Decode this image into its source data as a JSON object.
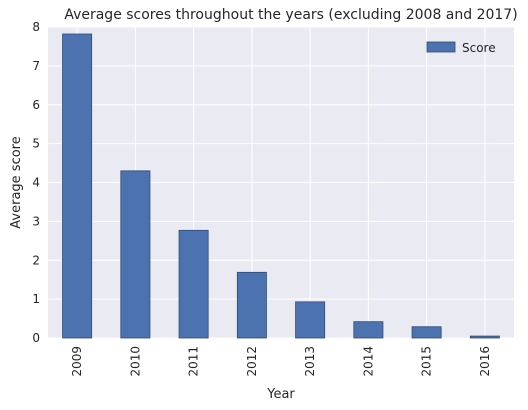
{
  "chart_data": {
    "type": "bar",
    "title": "Average scores throughout the years (excluding 2008 and 2017)",
    "xlabel": "Year",
    "ylabel": "Average score",
    "categories": [
      "2009",
      "2010",
      "2011",
      "2012",
      "2013",
      "2014",
      "2015",
      "2016"
    ],
    "series": [
      {
        "name": "Score",
        "values": [
          7.82,
          4.3,
          2.77,
          1.69,
          0.93,
          0.42,
          0.29,
          0.05
        ]
      }
    ],
    "ylim": [
      0,
      8
    ],
    "yticks": [
      "0",
      "1",
      "2",
      "3",
      "4",
      "5",
      "6",
      "7",
      "8"
    ],
    "grid": true,
    "legend": "top-right",
    "colors": {
      "bar": "#4c72b0",
      "bar_edge": "#2f4a73",
      "plot_bg": "#eaeaf2",
      "grid": "#ffffff"
    }
  }
}
